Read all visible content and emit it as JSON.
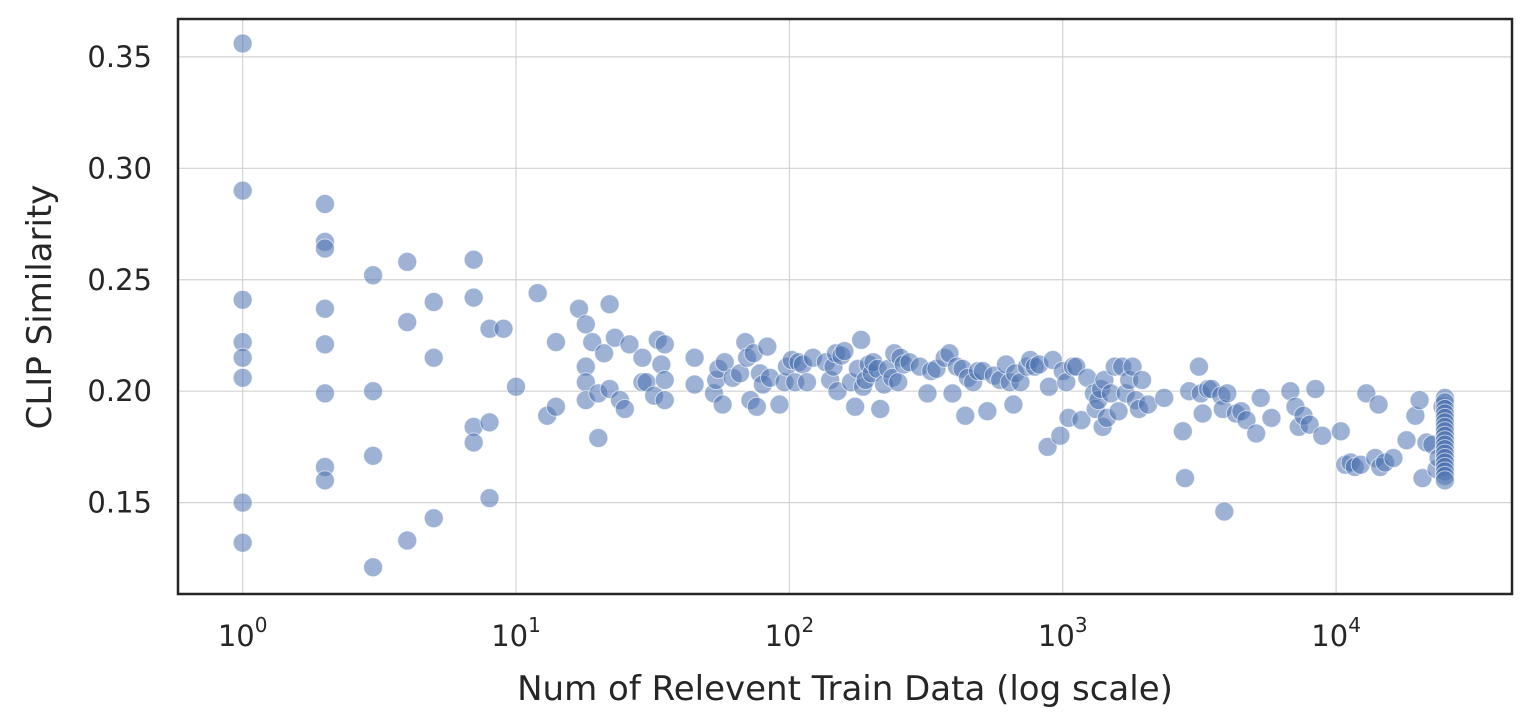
{
  "chart_data": {
    "type": "scatter",
    "title": "",
    "xlabel": "Num of Relevent Train Data (log scale)",
    "ylabel": "CLIP Similarity",
    "x_scale": "log",
    "xlim": [
      0.58,
      44000
    ],
    "ylim": [
      0.109,
      0.367
    ],
    "grid": true,
    "point_color": "#4c72b0",
    "x_ticks": [
      {
        "value": 1,
        "base": "10",
        "exp": "0"
      },
      {
        "value": 10,
        "base": "10",
        "exp": "1"
      },
      {
        "value": 100,
        "base": "10",
        "exp": "2"
      },
      {
        "value": 1000,
        "base": "10",
        "exp": "3"
      },
      {
        "value": 10000,
        "base": "10",
        "exp": "4"
      }
    ],
    "y_ticks": [
      {
        "value": 0.15,
        "label": "0.15"
      },
      {
        "value": 0.2,
        "label": "0.20"
      },
      {
        "value": 0.25,
        "label": "0.25"
      },
      {
        "value": 0.3,
        "label": "0.30"
      },
      {
        "value": 0.35,
        "label": "0.35"
      }
    ],
    "points": [
      [
        1,
        0.356
      ],
      [
        1,
        0.29
      ],
      [
        1,
        0.241
      ],
      [
        1,
        0.222
      ],
      [
        1,
        0.215
      ],
      [
        1,
        0.206
      ],
      [
        1,
        0.15
      ],
      [
        1,
        0.132
      ],
      [
        2,
        0.284
      ],
      [
        2,
        0.267
      ],
      [
        2,
        0.264
      ],
      [
        2,
        0.237
      ],
      [
        2,
        0.221
      ],
      [
        2,
        0.199
      ],
      [
        2,
        0.166
      ],
      [
        2,
        0.16
      ],
      [
        3,
        0.252
      ],
      [
        3,
        0.2
      ],
      [
        3,
        0.171
      ],
      [
        3,
        0.121
      ],
      [
        4,
        0.258
      ],
      [
        4,
        0.231
      ],
      [
        4,
        0.133
      ],
      [
        5,
        0.24
      ],
      [
        5,
        0.215
      ],
      [
        5,
        0.143
      ],
      [
        7,
        0.259
      ],
      [
        7,
        0.242
      ],
      [
        7,
        0.184
      ],
      [
        7,
        0.177
      ],
      [
        8,
        0.228
      ],
      [
        8,
        0.186
      ],
      [
        8,
        0.152
      ],
      [
        9,
        0.228
      ],
      [
        10,
        0.202
      ],
      [
        12,
        0.244
      ],
      [
        13,
        0.189
      ],
      [
        14,
        0.222
      ],
      [
        14,
        0.193
      ],
      [
        17,
        0.237
      ],
      [
        18,
        0.23
      ],
      [
        18,
        0.211
      ],
      [
        18,
        0.204
      ],
      [
        18,
        0.196
      ],
      [
        19,
        0.222
      ],
      [
        20,
        0.199
      ],
      [
        20,
        0.179
      ],
      [
        21,
        0.217
      ],
      [
        22,
        0.239
      ],
      [
        22,
        0.201
      ],
      [
        23,
        0.224
      ],
      [
        24,
        0.196
      ],
      [
        25,
        0.192
      ],
      [
        26,
        0.221
      ],
      [
        29,
        0.215
      ],
      [
        29,
        0.204
      ],
      [
        30,
        0.204
      ],
      [
        32,
        0.198
      ],
      [
        33,
        0.223
      ],
      [
        34,
        0.212
      ],
      [
        35,
        0.221
      ],
      [
        35,
        0.205
      ],
      [
        35,
        0.196
      ],
      [
        45,
        0.215
      ],
      [
        45,
        0.203
      ],
      [
        53,
        0.199
      ],
      [
        54,
        0.205
      ],
      [
        55,
        0.21
      ],
      [
        57,
        0.194
      ],
      [
        58,
        0.213
      ],
      [
        62,
        0.206
      ],
      [
        66,
        0.208
      ],
      [
        69,
        0.222
      ],
      [
        70,
        0.215
      ],
      [
        72,
        0.196
      ],
      [
        74,
        0.217
      ],
      [
        76,
        0.193
      ],
      [
        78,
        0.208
      ],
      [
        80,
        0.203
      ],
      [
        83,
        0.22
      ],
      [
        85,
        0.206
      ],
      [
        92,
        0.194
      ],
      [
        96,
        0.204
      ],
      [
        98,
        0.211
      ],
      [
        102,
        0.214
      ],
      [
        105,
        0.204
      ],
      [
        108,
        0.213
      ],
      [
        112,
        0.212
      ],
      [
        116,
        0.204
      ],
      [
        122,
        0.215
      ],
      [
        136,
        0.213
      ],
      [
        141,
        0.205
      ],
      [
        145,
        0.211
      ],
      [
        148,
        0.217
      ],
      [
        150,
        0.2
      ],
      [
        155,
        0.216
      ],
      [
        159,
        0.218
      ],
      [
        168,
        0.204
      ],
      [
        174,
        0.193
      ],
      [
        178,
        0.21
      ],
      [
        183,
        0.223
      ],
      [
        186,
        0.202
      ],
      [
        190,
        0.205
      ],
      [
        195,
        0.212
      ],
      [
        200,
        0.208
      ],
      [
        203,
        0.213
      ],
      [
        210,
        0.21
      ],
      [
        215,
        0.192
      ],
      [
        222,
        0.203
      ],
      [
        230,
        0.21
      ],
      [
        238,
        0.206
      ],
      [
        242,
        0.217
      ],
      [
        250,
        0.204
      ],
      [
        255,
        0.215
      ],
      [
        262,
        0.212
      ],
      [
        275,
        0.213
      ],
      [
        300,
        0.211
      ],
      [
        320,
        0.199
      ],
      [
        330,
        0.209
      ],
      [
        345,
        0.21
      ],
      [
        370,
        0.215
      ],
      [
        385,
        0.217
      ],
      [
        395,
        0.199
      ],
      [
        410,
        0.211
      ],
      [
        430,
        0.21
      ],
      [
        440,
        0.189
      ],
      [
        450,
        0.206
      ],
      [
        470,
        0.204
      ],
      [
        490,
        0.209
      ],
      [
        510,
        0.209
      ],
      [
        530,
        0.191
      ],
      [
        560,
        0.207
      ],
      [
        590,
        0.205
      ],
      [
        620,
        0.212
      ],
      [
        640,
        0.204
      ],
      [
        660,
        0.194
      ],
      [
        670,
        0.208
      ],
      [
        700,
        0.204
      ],
      [
        740,
        0.211
      ],
      [
        760,
        0.214
      ],
      [
        790,
        0.211
      ],
      [
        820,
        0.212
      ],
      [
        880,
        0.175
      ],
      [
        890,
        0.202
      ],
      [
        920,
        0.214
      ],
      [
        980,
        0.18
      ],
      [
        1000,
        0.209
      ],
      [
        1030,
        0.204
      ],
      [
        1050,
        0.188
      ],
      [
        1090,
        0.211
      ],
      [
        1120,
        0.211
      ],
      [
        1170,
        0.187
      ],
      [
        1230,
        0.206
      ],
      [
        1300,
        0.199
      ],
      [
        1320,
        0.192
      ],
      [
        1350,
        0.196
      ],
      [
        1380,
        0.201
      ],
      [
        1400,
        0.184
      ],
      [
        1420,
        0.205
      ],
      [
        1450,
        0.188
      ],
      [
        1500,
        0.199
      ],
      [
        1550,
        0.211
      ],
      [
        1600,
        0.191
      ],
      [
        1650,
        0.211
      ],
      [
        1700,
        0.199
      ],
      [
        1750,
        0.205
      ],
      [
        1800,
        0.211
      ],
      [
        1850,
        0.196
      ],
      [
        1900,
        0.192
      ],
      [
        1950,
        0.205
      ],
      [
        2050,
        0.194
      ],
      [
        2350,
        0.197
      ],
      [
        2750,
        0.182
      ],
      [
        2800,
        0.161
      ],
      [
        2900,
        0.2
      ],
      [
        3150,
        0.211
      ],
      [
        3200,
        0.199
      ],
      [
        3250,
        0.19
      ],
      [
        3400,
        0.201
      ],
      [
        3500,
        0.201
      ],
      [
        3800,
        0.198
      ],
      [
        3850,
        0.192
      ],
      [
        3900,
        0.146
      ],
      [
        4000,
        0.199
      ],
      [
        4300,
        0.19
      ],
      [
        4500,
        0.191
      ],
      [
        4700,
        0.187
      ],
      [
        5100,
        0.181
      ],
      [
        5300,
        0.197
      ],
      [
        5800,
        0.188
      ],
      [
        6800,
        0.2
      ],
      [
        7100,
        0.193
      ],
      [
        7300,
        0.184
      ],
      [
        7600,
        0.189
      ],
      [
        8000,
        0.185
      ],
      [
        8400,
        0.201
      ],
      [
        8900,
        0.18
      ],
      [
        10400,
        0.182
      ],
      [
        10800,
        0.167
      ],
      [
        11300,
        0.168
      ],
      [
        11700,
        0.166
      ],
      [
        12300,
        0.167
      ],
      [
        12900,
        0.199
      ],
      [
        13900,
        0.17
      ],
      [
        14300,
        0.194
      ],
      [
        14500,
        0.166
      ],
      [
        15100,
        0.168
      ],
      [
        16200,
        0.17
      ],
      [
        18100,
        0.178
      ],
      [
        19500,
        0.189
      ],
      [
        20200,
        0.196
      ],
      [
        20700,
        0.161
      ],
      [
        21400,
        0.177
      ],
      [
        22500,
        0.176
      ],
      [
        23300,
        0.165
      ],
      [
        23700,
        0.17
      ],
      [
        24500,
        0.193
      ],
      [
        25000,
        0.197
      ],
      [
        25000,
        0.195
      ],
      [
        25000,
        0.192
      ],
      [
        25000,
        0.19
      ],
      [
        25000,
        0.188
      ],
      [
        25000,
        0.186
      ],
      [
        25000,
        0.184
      ],
      [
        25000,
        0.182
      ],
      [
        25000,
        0.18
      ],
      [
        25000,
        0.178
      ],
      [
        25000,
        0.176
      ],
      [
        25000,
        0.174
      ],
      [
        25000,
        0.172
      ],
      [
        25000,
        0.17
      ],
      [
        25000,
        0.168
      ],
      [
        25000,
        0.166
      ],
      [
        25000,
        0.164
      ],
      [
        25000,
        0.162
      ],
      [
        25000,
        0.16
      ]
    ]
  }
}
